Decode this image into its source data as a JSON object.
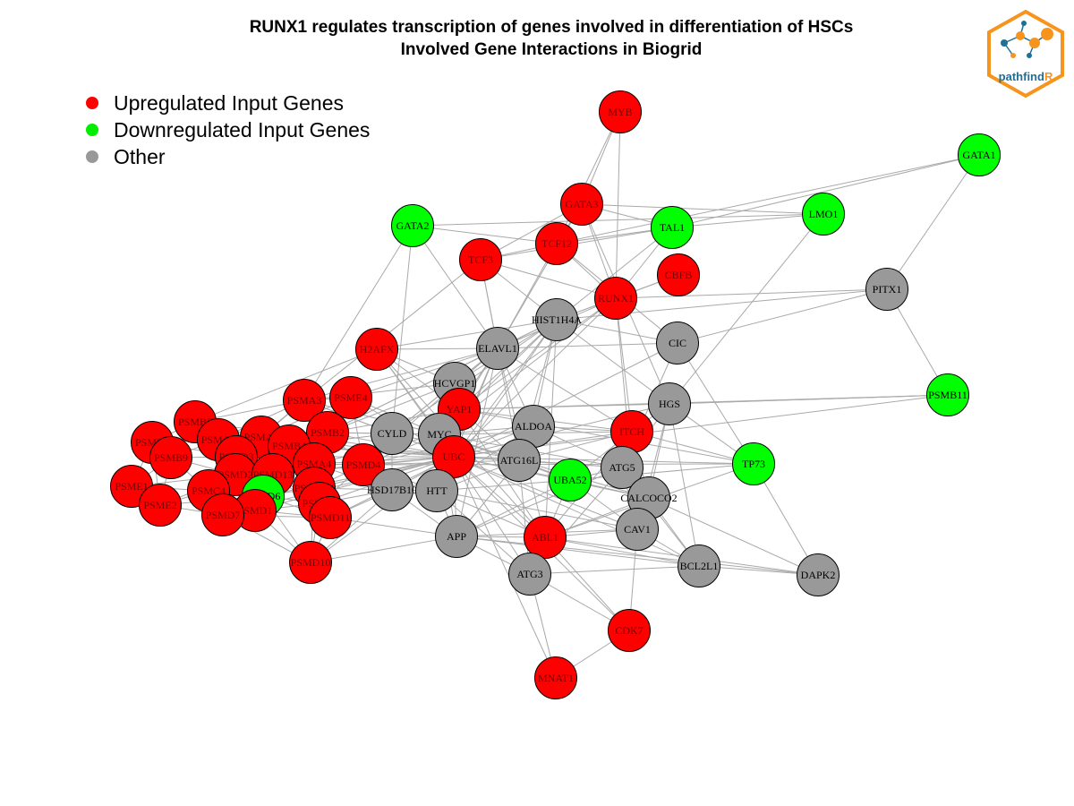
{
  "title": {
    "line1": "RUNX1 regulates transcription of genes involved in differentiation of HSCs",
    "line2": "Involved Gene Interactions in Biogrid"
  },
  "legend": [
    {
      "label": "Upregulated Input Genes",
      "color": "#ff0000"
    },
    {
      "label": "Downregulated Input Genes",
      "color": "#00ee00"
    },
    {
      "label": "Other",
      "color": "#999999"
    }
  ],
  "colors": {
    "up": "#ff0000",
    "down": "#00ff00",
    "other": "#999999",
    "edge": "#a9a9a9",
    "logo_orange": "#f7941d",
    "logo_blue": "#1f6f96"
  },
  "logo": {
    "text_main": "pathfind",
    "text_accent": "R"
  },
  "nodes": [
    {
      "id": "MYB",
      "type": "up"
    },
    {
      "id": "GATA3",
      "type": "up"
    },
    {
      "id": "GATA1",
      "type": "down"
    },
    {
      "id": "LMO1",
      "type": "down"
    },
    {
      "id": "GATA2",
      "type": "down"
    },
    {
      "id": "TAL1",
      "type": "down"
    },
    {
      "id": "TCF12",
      "type": "up"
    },
    {
      "id": "TCF3",
      "type": "up"
    },
    {
      "id": "CBFB",
      "type": "up"
    },
    {
      "id": "RUNX1",
      "type": "up"
    },
    {
      "id": "PITX1",
      "type": "other"
    },
    {
      "id": "HIST1H4A",
      "type": "other"
    },
    {
      "id": "CIC",
      "type": "other"
    },
    {
      "id": "H2AFX",
      "type": "up"
    },
    {
      "id": "ELAVL1",
      "type": "other"
    },
    {
      "id": "PSMB11",
      "type": "down"
    },
    {
      "id": "HCVGP1",
      "type": "other"
    },
    {
      "id": "PSMA3",
      "type": "up"
    },
    {
      "id": "PSME4",
      "type": "up"
    },
    {
      "id": "YAP1",
      "type": "up"
    },
    {
      "id": "HGS",
      "type": "other"
    },
    {
      "id": "PSMB3",
      "type": "up"
    },
    {
      "id": "PSMA5",
      "type": "up"
    },
    {
      "id": "PSMB2",
      "type": "up"
    },
    {
      "id": "CYLD",
      "type": "other"
    },
    {
      "id": "MYC",
      "type": "other"
    },
    {
      "id": "ALDOA",
      "type": "other"
    },
    {
      "id": "ITCH",
      "type": "up"
    },
    {
      "id": "PSMB8",
      "type": "up"
    },
    {
      "id": "PSMA2",
      "type": "up"
    },
    {
      "id": "PSMB4",
      "type": "up"
    },
    {
      "id": "PSMB9",
      "type": "up"
    },
    {
      "id": "PSMD3",
      "type": "up"
    },
    {
      "id": "UBC",
      "type": "up"
    },
    {
      "id": "ATG16L",
      "type": "other"
    },
    {
      "id": "TP73",
      "type": "down"
    },
    {
      "id": "PSMA4",
      "type": "up"
    },
    {
      "id": "PSMD4",
      "type": "up"
    },
    {
      "id": "ATG5",
      "type": "other"
    },
    {
      "id": "PSMD2",
      "type": "up"
    },
    {
      "id": "PSMD13",
      "type": "up"
    },
    {
      "id": "PSME1",
      "type": "up"
    },
    {
      "id": "UBA52",
      "type": "down"
    },
    {
      "id": "PSMC4",
      "type": "up"
    },
    {
      "id": "PSMD14",
      "type": "up"
    },
    {
      "id": "HSD17B10",
      "type": "other"
    },
    {
      "id": "HTT",
      "type": "other"
    },
    {
      "id": "PSMD6",
      "type": "down"
    },
    {
      "id": "CALCOCO2",
      "type": "other"
    },
    {
      "id": "PSME2",
      "type": "up"
    },
    {
      "id": "PSMA7",
      "type": "up"
    },
    {
      "id": "PSMD1",
      "type": "up"
    },
    {
      "id": "PSMD7",
      "type": "up"
    },
    {
      "id": "PSMD11",
      "type": "up"
    },
    {
      "id": "CAV1",
      "type": "other"
    },
    {
      "id": "APP",
      "type": "other"
    },
    {
      "id": "ABL1",
      "type": "up"
    },
    {
      "id": "PSMD10",
      "type": "up"
    },
    {
      "id": "BCL2L1",
      "type": "other"
    },
    {
      "id": "DAPK2",
      "type": "other"
    },
    {
      "id": "ATG3",
      "type": "other"
    },
    {
      "id": "CDK7",
      "type": "up"
    },
    {
      "id": "MNAT1",
      "type": "up"
    }
  ],
  "edges": [
    [
      "MYB",
      "GATA3"
    ],
    [
      "MYB",
      "TCF12"
    ],
    [
      "MYB",
      "RUNX1"
    ],
    [
      "GATA3",
      "TAL1"
    ],
    [
      "GATA3",
      "LMO1"
    ],
    [
      "GATA3",
      "TCF12"
    ],
    [
      "GATA3",
      "TCF3"
    ],
    [
      "GATA3",
      "RUNX1"
    ],
    [
      "GATA3",
      "HGS"
    ],
    [
      "GATA3",
      "ELAVL1"
    ],
    [
      "GATA1",
      "TAL1"
    ],
    [
      "GATA1",
      "PITX1"
    ],
    [
      "GATA1",
      "TCF12"
    ],
    [
      "LMO1",
      "TAL1"
    ],
    [
      "LMO1",
      "GATA2"
    ],
    [
      "LMO1",
      "HGS"
    ],
    [
      "GATA2",
      "TCF12"
    ],
    [
      "GATA2",
      "ELAVL1"
    ],
    [
      "GATA2",
      "PSMA3"
    ],
    [
      "GATA2",
      "CYLD"
    ],
    [
      "TAL1",
      "TCF3"
    ],
    [
      "TAL1",
      "TCF12"
    ],
    [
      "TAL1",
      "RUNX1"
    ],
    [
      "TAL1",
      "HIST1H4A"
    ],
    [
      "TCF12",
      "TCF3"
    ],
    [
      "TCF12",
      "RUNX1"
    ],
    [
      "TCF12",
      "CIC"
    ],
    [
      "TCF12",
      "ELAVL1"
    ],
    [
      "TCF3",
      "RUNX1"
    ],
    [
      "TCF3",
      "ELAVL1"
    ],
    [
      "TCF3",
      "HIST1H4A"
    ],
    [
      "TCF3",
      "PSMA3"
    ],
    [
      "TCF3",
      "ATG16L"
    ],
    [
      "CBFB",
      "RUNX1"
    ],
    [
      "CBFB",
      "HIST1H4A"
    ],
    [
      "RUNX1",
      "HIST1H4A"
    ],
    [
      "RUNX1",
      "ELAVL1"
    ],
    [
      "RUNX1",
      "UBC"
    ],
    [
      "RUNX1",
      "MYC"
    ],
    [
      "RUNX1",
      "YAP1"
    ],
    [
      "RUNX1",
      "ITCH"
    ],
    [
      "RUNX1",
      "PITX1"
    ],
    [
      "RUNX1",
      "CAV1"
    ],
    [
      "PITX1",
      "PSMB11"
    ],
    [
      "PITX1",
      "HIST1H4A"
    ],
    [
      "PITX1",
      "CIC"
    ],
    [
      "HIST1H4A",
      "ELAVL1"
    ],
    [
      "HIST1H4A",
      "H2AFX"
    ],
    [
      "HIST1H4A",
      "HCVGP1"
    ],
    [
      "HIST1H4A",
      "YAP1"
    ],
    [
      "HIST1H4A",
      "UBC"
    ],
    [
      "HIST1H4A",
      "MYC"
    ],
    [
      "HIST1H4A",
      "CYLD"
    ],
    [
      "HIST1H4A",
      "ALDOA"
    ],
    [
      "HIST1H4A",
      "ATG16L"
    ],
    [
      "HIST1H4A",
      "HTT"
    ],
    [
      "HIST1H4A",
      "PSMB2"
    ],
    [
      "HIST1H4A",
      "ABL1"
    ],
    [
      "HIST1H4A",
      "CIC"
    ],
    [
      "HIST1H4A",
      "HGS"
    ],
    [
      "CIC",
      "ELAVL1"
    ],
    [
      "CIC",
      "UBC"
    ],
    [
      "CIC",
      "TP73"
    ],
    [
      "CIC",
      "ATG5"
    ],
    [
      "H2AFX",
      "ELAVL1"
    ],
    [
      "H2AFX",
      "UBC"
    ],
    [
      "H2AFX",
      "MYC"
    ],
    [
      "H2AFX",
      "ABL1"
    ],
    [
      "H2AFX",
      "PSMB3"
    ],
    [
      "H2AFX",
      "HCVGP1"
    ],
    [
      "H2AFX",
      "YAP1"
    ],
    [
      "ELAVL1",
      "HCVGP1"
    ],
    [
      "ELAVL1",
      "YAP1"
    ],
    [
      "ELAVL1",
      "UBC"
    ],
    [
      "ELAVL1",
      "MYC"
    ],
    [
      "ELAVL1",
      "ALDOA"
    ],
    [
      "ELAVL1",
      "CYLD"
    ],
    [
      "ELAVL1",
      "HTT"
    ],
    [
      "ELAVL1",
      "APP"
    ],
    [
      "ELAVL1",
      "PSMB2"
    ],
    [
      "ELAVL1",
      "PSMA3"
    ],
    [
      "ELAVL1",
      "PSME4"
    ],
    [
      "ELAVL1",
      "PSMD4"
    ],
    [
      "ELAVL1",
      "ABL1"
    ],
    [
      "ELAVL1",
      "ITCH"
    ],
    [
      "PSMB11",
      "UBC"
    ],
    [
      "PSMB11",
      "HGS"
    ],
    [
      "PSMB11",
      "YAP1"
    ],
    [
      "HCVGP1",
      "UBC"
    ],
    [
      "HCVGP1",
      "PSMB2"
    ],
    [
      "HCVGP1",
      "MYC"
    ],
    [
      "HCVGP1",
      "CYLD"
    ],
    [
      "HCVGP1",
      "PSMA3"
    ],
    [
      "YAP1",
      "UBC"
    ],
    [
      "YAP1",
      "ITCH"
    ],
    [
      "YAP1",
      "ABL1"
    ],
    [
      "YAP1",
      "ATG16L"
    ],
    [
      "YAP1",
      "PSMB2"
    ],
    [
      "YAP1",
      "HGS"
    ],
    [
      "YAP1",
      "TP73"
    ],
    [
      "HGS",
      "UBC"
    ],
    [
      "HGS",
      "ITCH"
    ],
    [
      "HGS",
      "ATG5"
    ],
    [
      "HGS",
      "BCL2L1"
    ],
    [
      "HGS",
      "CAV1"
    ],
    [
      "HGS",
      "CALCOCO2"
    ],
    [
      "HGS",
      "PSMB11"
    ],
    [
      "HGS",
      "TP73"
    ],
    [
      "PSMA3",
      "PSME4"
    ],
    [
      "PSMA3",
      "PSMB2"
    ],
    [
      "PSMA3",
      "PSMB3"
    ],
    [
      "PSMA3",
      "PSMA5"
    ],
    [
      "PSMA3",
      "PSMA2"
    ],
    [
      "PSMA3",
      "PSMD3"
    ],
    [
      "PSMA3",
      "UBC"
    ],
    [
      "PSMA3",
      "CYLD"
    ],
    [
      "PSMA3",
      "MYC"
    ],
    [
      "PSME4",
      "PSMB2"
    ],
    [
      "PSME4",
      "PSMA5"
    ],
    [
      "PSME4",
      "PSMB4"
    ],
    [
      "PSME4",
      "UBC"
    ],
    [
      "PSME4",
      "MYC"
    ],
    [
      "PSME4",
      "PSMD4"
    ],
    [
      "PSMB3",
      "PSMA2"
    ],
    [
      "PSMB3",
      "PSMB8"
    ],
    [
      "PSMB3",
      "PSMB9"
    ],
    [
      "PSMB3",
      "PSMA5"
    ],
    [
      "PSMB3",
      "PSMD3"
    ],
    [
      "PSMB3",
      "UBC"
    ],
    [
      "PSMA5",
      "PSMB2"
    ],
    [
      "PSMA5",
      "PSMA2"
    ],
    [
      "PSMA5",
      "PSMB4"
    ],
    [
      "PSMA5",
      "PSMD3"
    ],
    [
      "PSMA5",
      "UBC"
    ],
    [
      "PSMB2",
      "PSMB4"
    ],
    [
      "PSMB2",
      "CYLD"
    ],
    [
      "PSMB2",
      "UBC"
    ],
    [
      "PSMB2",
      "MYC"
    ],
    [
      "PSMB2",
      "PSMD4"
    ],
    [
      "PSMB2",
      "PSMA4"
    ],
    [
      "CYLD",
      "MYC"
    ],
    [
      "CYLD",
      "UBC"
    ],
    [
      "CYLD",
      "ATG16L"
    ],
    [
      "CYLD",
      "HSD17B10"
    ],
    [
      "CYLD",
      "PSMD4"
    ],
    [
      "CYLD",
      "PSMB4"
    ],
    [
      "MYC",
      "UBC"
    ],
    [
      "MYC",
      "ALDOA"
    ],
    [
      "MYC",
      "ATG16L"
    ],
    [
      "MYC",
      "HTT"
    ],
    [
      "MYC",
      "PSMD4"
    ],
    [
      "MYC",
      "PSMA4"
    ],
    [
      "MYC",
      "ITCH"
    ],
    [
      "MYC",
      "UBA52"
    ],
    [
      "MYC",
      "ATG5"
    ],
    [
      "MYC",
      "APP"
    ],
    [
      "ALDOA",
      "UBC"
    ],
    [
      "ALDOA",
      "ATG16L"
    ],
    [
      "ALDOA",
      "HTT"
    ],
    [
      "ALDOA",
      "ITCH"
    ],
    [
      "ALDOA",
      "ATG5"
    ],
    [
      "ALDOA",
      "PSMD4"
    ],
    [
      "ITCH",
      "UBC"
    ],
    [
      "ITCH",
      "ATG16L"
    ],
    [
      "ITCH",
      "ATG5"
    ],
    [
      "ITCH",
      "TP73"
    ],
    [
      "ITCH",
      "CALCOCO2"
    ],
    [
      "ITCH",
      "ABL1"
    ],
    [
      "ITCH",
      "UBA52"
    ],
    [
      "PSMB8",
      "PSMB9"
    ],
    [
      "PSMB8",
      "PSME1"
    ],
    [
      "PSMB8",
      "PSMA2"
    ],
    [
      "PSMB8",
      "PSME2"
    ],
    [
      "PSMB8",
      "PSMD3"
    ],
    [
      "PSMA2",
      "PSMB9"
    ],
    [
      "PSMA2",
      "PSMD3"
    ],
    [
      "PSMA2",
      "PSMB4"
    ],
    [
      "PSMA2",
      "PSMD2"
    ],
    [
      "PSMA2",
      "UBC"
    ],
    [
      "PSMB4",
      "PSMD3"
    ],
    [
      "PSMB4",
      "PSMA4"
    ],
    [
      "PSMB4",
      "PSMD13"
    ],
    [
      "PSMB4",
      "UBC"
    ],
    [
      "PSMB9",
      "PSME1"
    ],
    [
      "PSMB9",
      "PSMD3"
    ],
    [
      "PSMB9",
      "PSMC4"
    ],
    [
      "PSMB9",
      "PSME2"
    ],
    [
      "PSMB9",
      "PSMD2"
    ],
    [
      "PSMD3",
      "PSMD2"
    ],
    [
      "PSMD3",
      "PSMD13"
    ],
    [
      "PSMD3",
      "PSMC4"
    ],
    [
      "PSMD3",
      "PSMD6"
    ],
    [
      "PSMD3",
      "PSMD1"
    ],
    [
      "PSMD3",
      "UBC"
    ],
    [
      "UBC",
      "ATG16L"
    ],
    [
      "UBC",
      "PSMA4"
    ],
    [
      "UBC",
      "PSMD4"
    ],
    [
      "UBC",
      "ATG5"
    ],
    [
      "UBC",
      "UBA52"
    ],
    [
      "UBC",
      "HTT"
    ],
    [
      "UBC",
      "HSD17B10"
    ],
    [
      "UBC",
      "APP"
    ],
    [
      "UBC",
      "ABL1"
    ],
    [
      "UBC",
      "PSMD14"
    ],
    [
      "UBC",
      "PSMD13"
    ],
    [
      "UBC",
      "PSMA7"
    ],
    [
      "UBC",
      "PSMD11"
    ],
    [
      "UBC",
      "PSMD10"
    ],
    [
      "UBC",
      "CAV1"
    ],
    [
      "UBC",
      "BCL2L1"
    ],
    [
      "UBC",
      "TP73"
    ],
    [
      "UBC",
      "CALCOCO2"
    ],
    [
      "UBC",
      "ATG3"
    ],
    [
      "UBC",
      "PSMD6"
    ],
    [
      "UBC",
      "PSMD1"
    ],
    [
      "UBC",
      "PSMD7"
    ],
    [
      "ATG16L",
      "ATG5"
    ],
    [
      "ATG16L",
      "UBA52"
    ],
    [
      "ATG16L",
      "HTT"
    ],
    [
      "ATG16L",
      "APP"
    ],
    [
      "ATG16L",
      "CALCOCO2"
    ],
    [
      "ATG16L",
      "ATG3"
    ],
    [
      "TP73",
      "ABL1"
    ],
    [
      "TP73",
      "DAPK2"
    ],
    [
      "TP73",
      "UBA52"
    ],
    [
      "TP73",
      "PSMD4"
    ],
    [
      "PSMA4",
      "PSMD4"
    ],
    [
      "PSMA4",
      "PSMD13"
    ],
    [
      "PSMA4",
      "PSMD14"
    ],
    [
      "PSMA4",
      "PSMA7"
    ],
    [
      "PSMA4",
      "HSD17B10"
    ],
    [
      "PSMD4",
      "PSMD14"
    ],
    [
      "PSMD4",
      "HSD17B10"
    ],
    [
      "PSMD4",
      "HTT"
    ],
    [
      "PSMD4",
      "PSMD13"
    ],
    [
      "PSMD4",
      "PSMA7"
    ],
    [
      "PSMD4",
      "ATG16L"
    ],
    [
      "ATG5",
      "UBA52"
    ],
    [
      "ATG5",
      "CALCOCO2"
    ],
    [
      "ATG5",
      "CAV1"
    ],
    [
      "ATG5",
      "ATG3"
    ],
    [
      "ATG5",
      "BCL2L1"
    ],
    [
      "ATG5",
      "APP"
    ],
    [
      "PSMD2",
      "PSMD13"
    ],
    [
      "PSMD2",
      "PSMC4"
    ],
    [
      "PSMD2",
      "PSMD6"
    ],
    [
      "PSMD2",
      "PSMD1"
    ],
    [
      "PSMD2",
      "PSMD7"
    ],
    [
      "PSMD2",
      "PSME2"
    ],
    [
      "PSMD13",
      "PSMD14"
    ],
    [
      "PSMD13",
      "PSMD6"
    ],
    [
      "PSMD13",
      "PSMD1"
    ],
    [
      "PSMD13",
      "PSMA7"
    ],
    [
      "PSMD13",
      "PSMD11"
    ],
    [
      "PSME1",
      "PSME2"
    ],
    [
      "PSME1",
      "PSMC4"
    ],
    [
      "PSME1",
      "PSMD2"
    ],
    [
      "UBA52",
      "HTT"
    ],
    [
      "UBA52",
      "CALCOCO2"
    ],
    [
      "UBA52",
      "CAV1"
    ],
    [
      "UBA52",
      "ABL1"
    ],
    [
      "UBA52",
      "APP"
    ],
    [
      "PSMC4",
      "PSMD6"
    ],
    [
      "PSMC4",
      "PSME2"
    ],
    [
      "PSMC4",
      "PSMD7"
    ],
    [
      "PSMC4",
      "PSMD1"
    ],
    [
      "PSMD14",
      "PSMD6"
    ],
    [
      "PSMD14",
      "PSMA7"
    ],
    [
      "PSMD14",
      "PSMD11"
    ],
    [
      "PSMD14",
      "HSD17B10"
    ],
    [
      "PSMD14",
      "PSMD10"
    ],
    [
      "HSD17B10",
      "HTT"
    ],
    [
      "HSD17B10",
      "APP"
    ],
    [
      "HSD17B10",
      "PSMA7"
    ],
    [
      "HTT",
      "APP"
    ],
    [
      "HTT",
      "ABL1"
    ],
    [
      "HTT",
      "CAV1"
    ],
    [
      "HTT",
      "ATG3"
    ],
    [
      "PSMD6",
      "PSMD1"
    ],
    [
      "PSMD6",
      "PSMD7"
    ],
    [
      "PSMD6",
      "PSMA7"
    ],
    [
      "PSMD6",
      "PSMD11"
    ],
    [
      "PSMD6",
      "PSMD10"
    ],
    [
      "PSMD6",
      "PSME2"
    ],
    [
      "CALCOCO2",
      "CAV1"
    ],
    [
      "CALCOCO2",
      "BCL2L1"
    ],
    [
      "CALCOCO2",
      "ABL1"
    ],
    [
      "CALCOCO2",
      "DAPK2"
    ],
    [
      "PSME2",
      "PSMD7"
    ],
    [
      "PSMA7",
      "PSMD11"
    ],
    [
      "PSMA7",
      "PSMD1"
    ],
    [
      "PSMA7",
      "PSMD10"
    ],
    [
      "PSMD1",
      "PSMD7"
    ],
    [
      "PSMD1",
      "PSMD11"
    ],
    [
      "PSMD1",
      "PSMD10"
    ],
    [
      "PSMD7",
      "PSMD11"
    ],
    [
      "PSMD7",
      "PSMD10"
    ],
    [
      "PSMD11",
      "PSMD10"
    ],
    [
      "PSMD11",
      "HSD17B10"
    ],
    [
      "CAV1",
      "ABL1"
    ],
    [
      "CAV1",
      "CDK7"
    ],
    [
      "CAV1",
      "APP"
    ],
    [
      "CAV1",
      "BCL2L1"
    ],
    [
      "APP",
      "ABL1"
    ],
    [
      "APP",
      "ATG3"
    ],
    [
      "APP",
      "PSMD10"
    ],
    [
      "APP",
      "PSMD11"
    ],
    [
      "APP",
      "BCL2L1"
    ],
    [
      "APP",
      "DAPK2"
    ],
    [
      "ABL1",
      "ATG3"
    ],
    [
      "ABL1",
      "BCL2L1"
    ],
    [
      "ABL1",
      "DAPK2"
    ],
    [
      "ABL1",
      "CDK7"
    ],
    [
      "PSMD10",
      "HSD17B10"
    ],
    [
      "ATG3",
      "CDK7"
    ],
    [
      "ATG3",
      "MNAT1"
    ],
    [
      "ATG3",
      "BCL2L1"
    ],
    [
      "CDK7",
      "MNAT1"
    ],
    [
      "CDK7",
      "UBC"
    ],
    [
      "MNAT1",
      "UBC"
    ],
    [
      "BCL2L1",
      "DAPK2"
    ]
  ]
}
